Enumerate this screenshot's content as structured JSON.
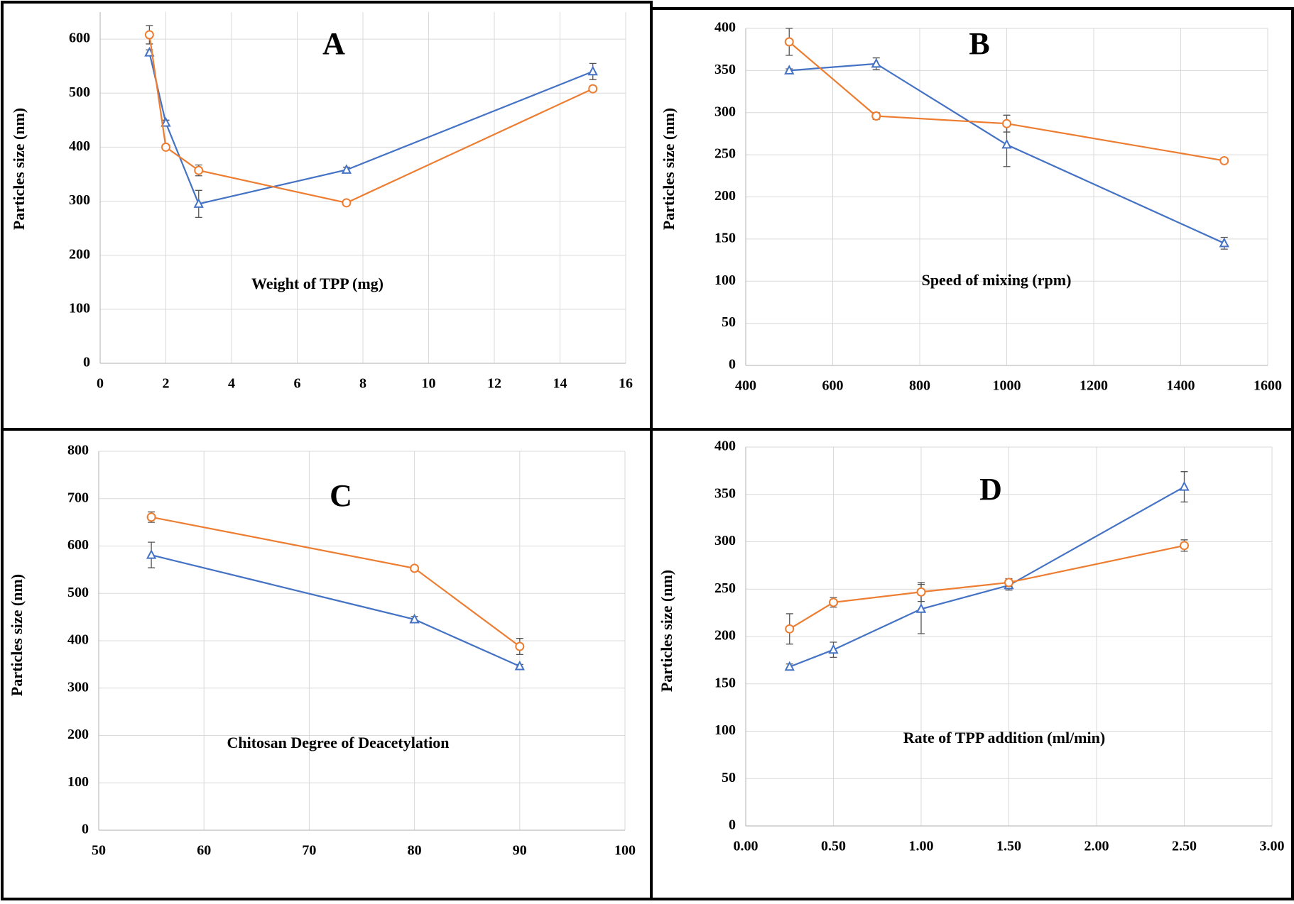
{
  "chart_data": [
    {
      "type": "line",
      "title": "A",
      "xlabel": "Weight of TPP (mg)",
      "ylabel": "Particles size (nm)",
      "x": [
        1.5,
        2,
        3,
        7.5,
        15
      ],
      "series": [
        {
          "color": "#4472c4",
          "marker": "triangle",
          "values": [
            575,
            445,
            295,
            358,
            540
          ],
          "errors": [
            5,
            5,
            25,
            5,
            15
          ]
        },
        {
          "color": "#ed7d31",
          "marker": "circle",
          "values": [
            608,
            400,
            357,
            297,
            508
          ],
          "errors": [
            17,
            3,
            10,
            3,
            5
          ]
        }
      ],
      "xlim": [
        0,
        16
      ],
      "xticks": [
        0,
        2,
        4,
        6,
        8,
        10,
        12,
        14,
        16
      ],
      "ylim": [
        0,
        650
      ],
      "yticks": [
        0,
        100,
        200,
        300,
        400,
        500,
        600
      ],
      "grid": true
    },
    {
      "type": "line",
      "title": "B",
      "xlabel": "Speed of mixing (rpm)",
      "ylabel": "Particles size (nm)",
      "x": [
        500,
        700,
        1000,
        1500
      ],
      "series": [
        {
          "color": "#4472c4",
          "marker": "triangle",
          "values": [
            350,
            358,
            262,
            145
          ],
          "errors": [
            2,
            7,
            26,
            7
          ]
        },
        {
          "color": "#ed7d31",
          "marker": "circle",
          "values": [
            384,
            296,
            287,
            243
          ],
          "errors": [
            16,
            4,
            10,
            3
          ]
        }
      ],
      "xlim": [
        400,
        1600
      ],
      "xticks": [
        400,
        600,
        800,
        1000,
        1200,
        1400,
        1600
      ],
      "ylim": [
        0,
        400
      ],
      "yticks": [
        0,
        50,
        100,
        150,
        200,
        250,
        300,
        350,
        400
      ],
      "grid": true
    },
    {
      "type": "line",
      "title": "C",
      "xlabel": "Chitosan Degree of Deacetylation",
      "ylabel": "Particles size (nm)",
      "x": [
        55,
        80,
        90
      ],
      "series": [
        {
          "color": "#4472c4",
          "marker": "triangle",
          "values": [
            581,
            445,
            346
          ],
          "errors": [
            27,
            6,
            4
          ]
        },
        {
          "color": "#ed7d31",
          "marker": "circle",
          "values": [
            661,
            553,
            388
          ],
          "errors": [
            11,
            4,
            17
          ]
        }
      ],
      "xlim": [
        50,
        100
      ],
      "xticks": [
        50,
        60,
        70,
        80,
        90,
        100
      ],
      "ylim": [
        0,
        800
      ],
      "yticks": [
        0,
        100,
        200,
        300,
        400,
        500,
        600,
        700,
        800
      ],
      "grid": true
    },
    {
      "type": "line",
      "title": "D",
      "xlabel": "Rate of TPP addition (ml/min)",
      "ylabel": "Particles size (nm)",
      "x": [
        0.25,
        0.5,
        1.0,
        1.5,
        2.5
      ],
      "series": [
        {
          "color": "#4472c4",
          "marker": "triangle",
          "values": [
            168,
            186,
            229,
            254,
            358
          ],
          "errors": [
            3,
            8,
            26,
            5,
            16
          ]
        },
        {
          "color": "#ed7d31",
          "marker": "circle",
          "values": [
            208,
            236,
            247,
            257,
            296
          ],
          "errors": [
            16,
            5,
            10,
            4,
            6
          ]
        }
      ],
      "xlim": [
        0,
        3
      ],
      "xticks": [
        {
          "value": 0,
          "label": "0.00"
        },
        {
          "value": 0.5,
          "label": "0.50"
        },
        {
          "value": 1,
          "label": "1.00"
        },
        {
          "value": 1.5,
          "label": "1.50"
        },
        {
          "value": 2,
          "label": "2.00"
        },
        {
          "value": 2.5,
          "label": "2.50"
        },
        {
          "value": 3,
          "label": "3.00"
        }
      ],
      "ylim": [
        0,
        400
      ],
      "yticks": [
        0,
        50,
        100,
        150,
        200,
        250,
        300,
        350,
        400
      ],
      "grid": true
    }
  ]
}
